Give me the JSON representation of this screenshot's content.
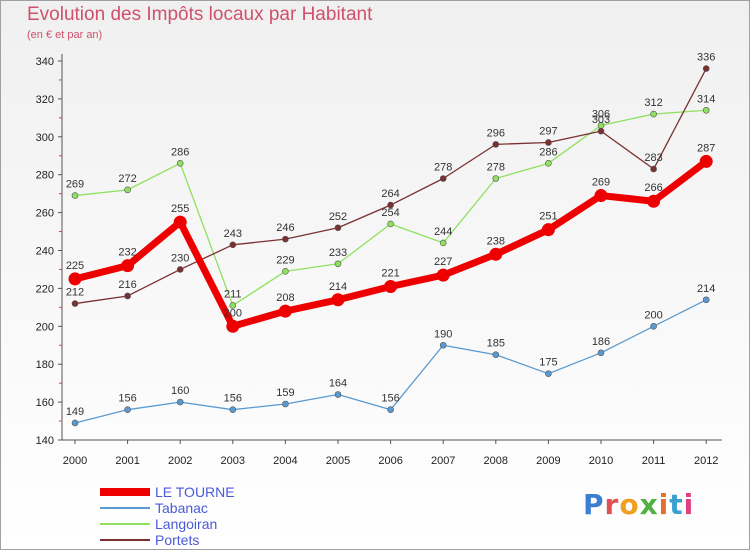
{
  "header": {
    "title": "Evolution des Impôts locaux par Habitant",
    "subtitle": "(en € et par an)"
  },
  "logo": {
    "text": "Proxiti",
    "letter_colors": [
      "#3a7fd0",
      "#e05050",
      "#f0a020",
      "#50b040",
      "#e07030",
      "#3aa0d0",
      "#e04080"
    ]
  },
  "chart_data": {
    "type": "line",
    "x": [
      "2000",
      "2001",
      "2002",
      "2003",
      "2004",
      "2005",
      "2006",
      "2007",
      "2008",
      "2009",
      "2010",
      "2011",
      "2012"
    ],
    "ylim": [
      140,
      340
    ],
    "yticks": [
      140,
      160,
      180,
      200,
      220,
      240,
      260,
      280,
      300,
      320,
      340
    ],
    "grid": false,
    "legend_position": "bottom-left",
    "series": [
      {
        "name": "Tabanac",
        "color": "#5a9ad0",
        "values": [
          149,
          156,
          160,
          156,
          159,
          164,
          156,
          190,
          185,
          175,
          186,
          200,
          214
        ],
        "labels": [
          "149",
          "156",
          "160",
          "156",
          "159",
          "164",
          "156",
          "190",
          "185",
          "175",
          "186",
          "200",
          "214"
        ]
      },
      {
        "name": "Langoiran",
        "color": "#90e060",
        "values": [
          269,
          272,
          286,
          211,
          229,
          233,
          254,
          244,
          278,
          286,
          306,
          312,
          314
        ],
        "labels": [
          "269",
          "272",
          "286",
          "211",
          "229",
          "233",
          "254",
          "244",
          "278",
          "286",
          "306",
          "312",
          "314"
        ]
      },
      {
        "name": "Portets",
        "color": "#7a3030",
        "values": [
          212,
          216,
          230,
          243,
          246,
          252,
          264,
          278,
          296,
          297,
          303,
          283,
          336
        ],
        "labels": [
          "212",
          "216",
          "230",
          "243",
          "246",
          "252",
          "264",
          "278",
          "296",
          "297",
          "303",
          "283",
          "336"
        ]
      },
      {
        "name": "LE TOURNE",
        "color": "#ee0000",
        "values": [
          225,
          232,
          255,
          200,
          208,
          214,
          221,
          227,
          238,
          251,
          269,
          266,
          287
        ],
        "labels": [
          "225",
          "232",
          "255",
          "200",
          "208",
          "214",
          "221",
          "227",
          "238",
          "251",
          "269",
          "266",
          "287"
        ]
      }
    ]
  },
  "legend": {
    "items": [
      {
        "label": "LE TOURNE",
        "color": "#ee0000"
      },
      {
        "label": "Tabanac",
        "color": "#5a9ad0"
      },
      {
        "label": "Langoiran",
        "color": "#90e060"
      },
      {
        "label": "Portets",
        "color": "#7a3030"
      }
    ]
  }
}
